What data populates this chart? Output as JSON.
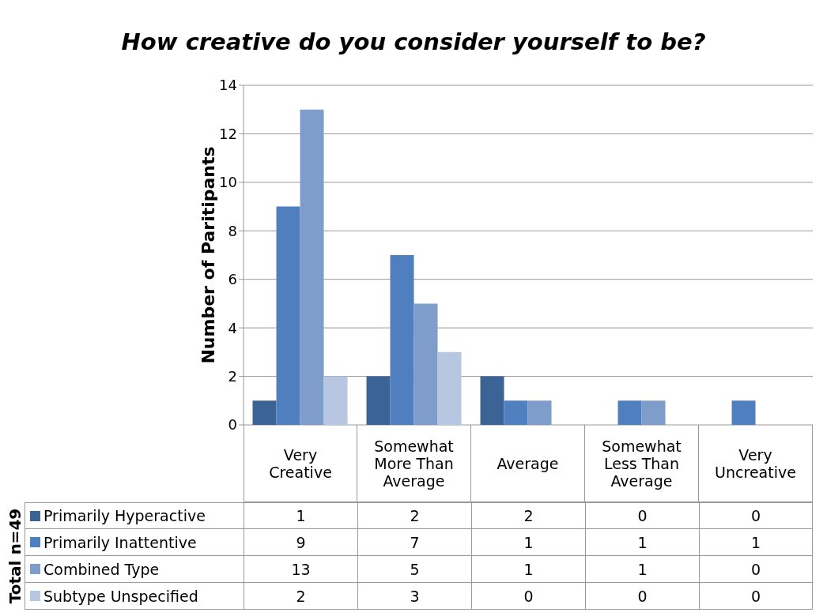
{
  "chart_data": {
    "type": "bar",
    "title": "How creative do you consider yourself to be?",
    "ylabel": "Number  of  Paritipants",
    "categories": [
      "Very Creative",
      "Somewhat More Than Average",
      "Average",
      "Somewhat Less Than Average",
      "Very Uncreative"
    ],
    "series": [
      {
        "name": "Primarily Hyperactive",
        "color": "#3c6395",
        "values": [
          1,
          2,
          2,
          0,
          0
        ]
      },
      {
        "name": "Primarily Inattentive",
        "color": "#4f7fbf",
        "values": [
          9,
          7,
          1,
          1,
          1
        ]
      },
      {
        "name": "Combined Type",
        "color": "#7f9dcb",
        "values": [
          13,
          5,
          1,
          1,
          0
        ]
      },
      {
        "name": "Subtype Unspecified",
        "color": "#b7c7e2",
        "values": [
          2,
          3,
          0,
          0,
          0
        ]
      }
    ],
    "ylim": [
      0,
      14
    ],
    "yticks": [
      0,
      2,
      4,
      6,
      8,
      10,
      12,
      14
    ],
    "grid": "y",
    "legend": "bottom",
    "data_labels": true,
    "annotations": [
      "Total n=49"
    ]
  }
}
